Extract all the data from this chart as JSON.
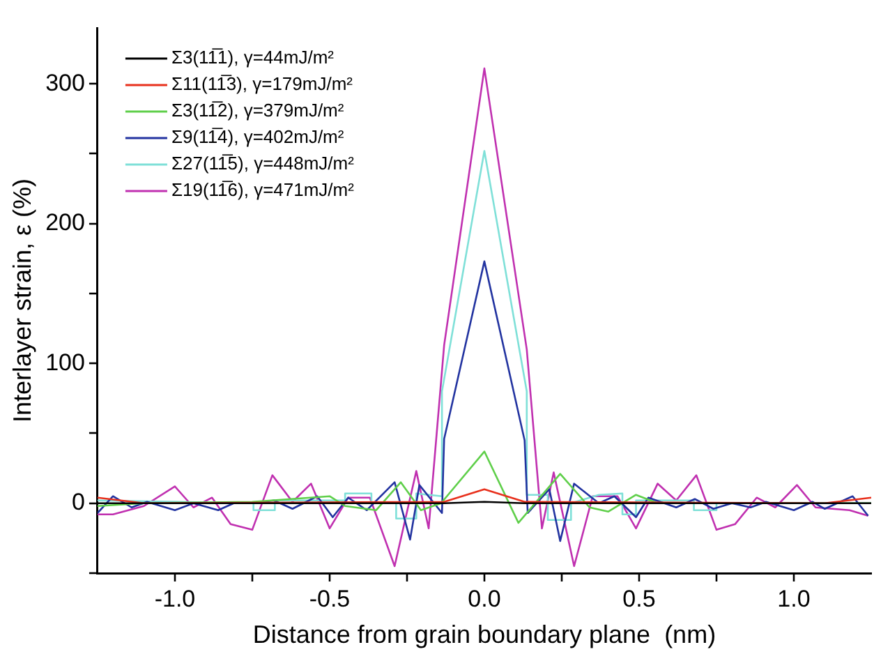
{
  "chart_data": {
    "type": "line",
    "xlabel": "Distance from grain boundary plane  (nm)",
    "ylabel": "Interlayer strain, ε (%)",
    "xlim": [
      -1.25,
      1.25
    ],
    "ylim": [
      -50,
      340
    ],
    "xticks": [
      {
        "value": -1,
        "label": "-1.0"
      },
      {
        "value": -0.75,
        "label": null
      },
      {
        "value": -0.5,
        "label": "-0.5"
      },
      {
        "value": -0.25,
        "label": null
      },
      {
        "value": 0,
        "label": "0.0"
      },
      {
        "value": 0.25,
        "label": null
      },
      {
        "value": 0.5,
        "label": "0.5"
      },
      {
        "value": 0.75,
        "label": null
      },
      {
        "value": 1,
        "label": "1.0"
      }
    ],
    "yticks": [
      {
        "value": -50,
        "label": null
      },
      0,
      {
        "value": 50,
        "label": null
      },
      100,
      {
        "value": 150,
        "label": null
      },
      200,
      {
        "value": 250,
        "label": null
      },
      300
    ],
    "grid": false,
    "legend": "top left",
    "marker": "none",
    "line_style": "solid",
    "series": [
      {
        "name": "Σ3(11̅1), γ=44mJ/m²",
        "color": "#000000",
        "x": [
          -1.25,
          -0.13,
          0,
          0.13,
          1.25
        ],
        "values": [
          0,
          0,
          1,
          0,
          0
        ]
      },
      {
        "name": "Σ11(11̅3), γ=179mJ/m²",
        "color": "#e8301c",
        "x": [
          -1.25,
          -1.1,
          -0.13,
          0,
          0.13,
          1.1,
          1.25
        ],
        "values": [
          4,
          0,
          1,
          10,
          1,
          0,
          4
        ]
      },
      {
        "name": "Σ3(11̅2), γ=379mJ/m²",
        "color": "#5fcf4a",
        "x": [
          -1.25,
          -1.1,
          -0.75,
          -0.5,
          -0.45,
          -0.35,
          -0.27,
          -0.205,
          -0.14,
          0,
          0.11,
          0.245,
          0.34,
          0.4,
          0.49,
          0.56,
          1.25
        ],
        "values": [
          -2,
          0,
          1,
          5,
          -2,
          -5,
          15,
          -5,
          0,
          37,
          -14,
          21,
          -3,
          -6,
          6,
          0,
          0
        ]
      },
      {
        "name": "Σ9(11̅4), γ=402mJ/m²",
        "color": "#2233a0",
        "x": [
          -1.25,
          -1.2,
          -1.14,
          -1.09,
          -1,
          -0.94,
          -0.86,
          -0.81,
          -0.75,
          -0.68,
          -0.62,
          -0.54,
          -0.49,
          -0.44,
          -0.38,
          -0.29,
          -0.24,
          -0.21,
          -0.137,
          -0.13,
          0,
          0.13,
          0.14,
          0.21,
          0.245,
          0.29,
          0.37,
          0.42,
          0.49,
          0.53,
          0.62,
          0.68,
          0.74,
          0.8,
          0.86,
          0.91,
          1,
          1.06,
          1.1,
          1.19,
          1.24
        ],
        "values": [
          -7,
          5,
          -3,
          1,
          -5,
          0,
          -5,
          0,
          0,
          2,
          -4,
          5,
          -10,
          4,
          -5,
          15,
          -26,
          13,
          -7,
          46,
          173,
          45,
          -7,
          10,
          -27,
          14,
          0,
          5,
          -10,
          4,
          -3,
          3,
          -4,
          0,
          -3,
          1,
          -5,
          1,
          -4,
          5,
          -9
        ]
      },
      {
        "name": "Σ27(11̅5), γ=448mJ/m²",
        "color": "#7fe0d8",
        "x": [
          -1.25,
          -0.746,
          -0.746,
          -0.677,
          -0.677,
          -0.45,
          -0.45,
          -0.365,
          -0.365,
          -0.285,
          -0.285,
          -0.22,
          -0.22,
          -0.137,
          -0.137,
          0,
          0.137,
          0.137,
          0.205,
          0.205,
          0.28,
          0.28,
          0.37,
          0.446,
          0.446,
          0.49,
          0.49,
          0.677,
          0.677,
          0.75,
          0.75,
          1.25
        ],
        "values": [
          2,
          0,
          -5,
          -5,
          2,
          2,
          7,
          7,
          0,
          0,
          -11,
          -11,
          7,
          5,
          80,
          252,
          80,
          6,
          6,
          -12,
          -12,
          0,
          6,
          7,
          -8,
          -8,
          2,
          2,
          -5,
          -5,
          0,
          0
        ]
      },
      {
        "name": "Σ19(11̅6), γ=471mJ/m²",
        "color": "#c030b0",
        "x": [
          -1.25,
          -1.2,
          -1.1,
          -1,
          -0.94,
          -0.88,
          -0.82,
          -0.75,
          -0.685,
          -0.62,
          -0.56,
          -0.5,
          -0.44,
          -0.37,
          -0.29,
          -0.22,
          -0.18,
          -0.13,
          0,
          0.137,
          0.186,
          0.224,
          0.29,
          0.35,
          0.43,
          0.49,
          0.56,
          0.62,
          0.685,
          0.75,
          0.81,
          0.88,
          0.94,
          1.01,
          1.07,
          1.18,
          1.24
        ],
        "values": [
          -8,
          -8,
          -2,
          12,
          -3,
          4,
          -15,
          -19,
          20,
          1,
          14,
          -18,
          4,
          4,
          -45,
          23,
          -18,
          113,
          311,
          110,
          -18,
          22,
          -45,
          5,
          5,
          -18,
          14,
          2,
          20,
          -19,
          -15,
          4,
          -3,
          13,
          -3,
          -5,
          -9
        ]
      }
    ]
  }
}
